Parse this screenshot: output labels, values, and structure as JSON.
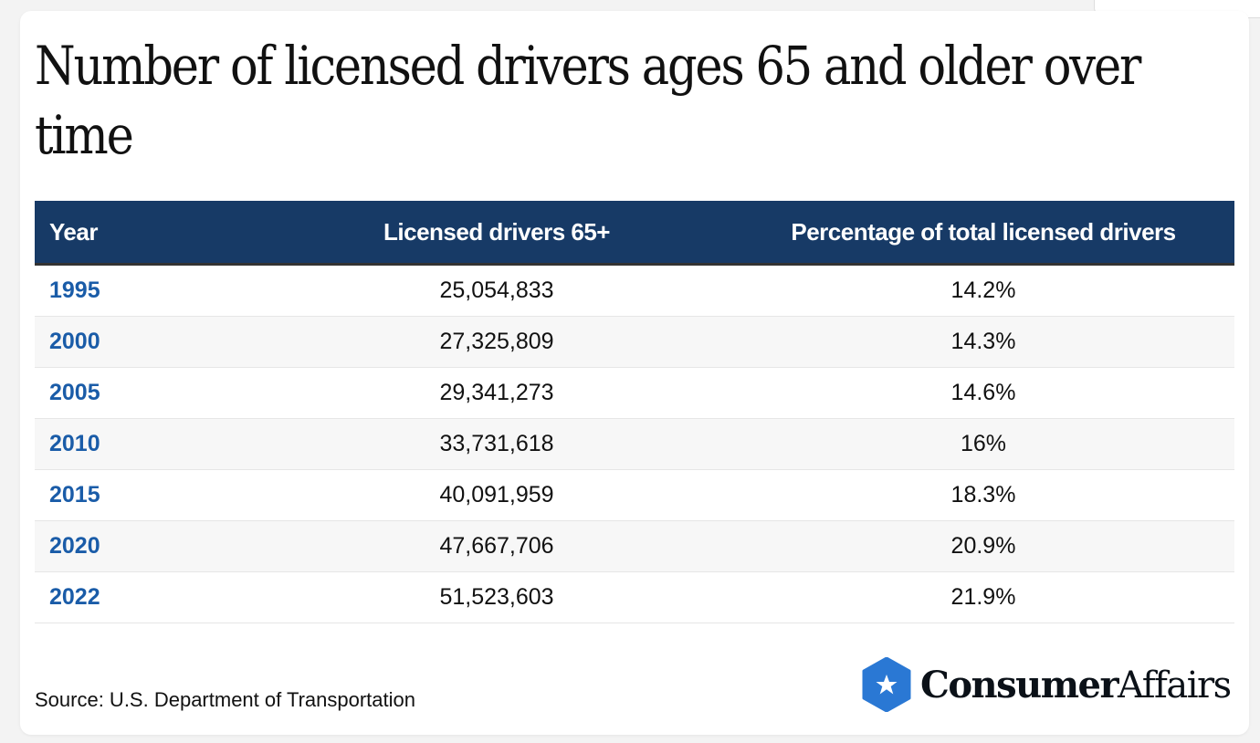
{
  "title": "Number of licensed drivers ages 65 and older over time",
  "table": {
    "headers": [
      "Year",
      "Licensed drivers 65+",
      "Percentage of total licensed drivers"
    ],
    "rows": [
      [
        "1995",
        "25,054,833",
        "14.2%"
      ],
      [
        "2000",
        "27,325,809",
        "14.3%"
      ],
      [
        "2005",
        "29,341,273",
        "14.6%"
      ],
      [
        "2010",
        "33,731,618",
        "16%"
      ],
      [
        "2015",
        "40,091,959",
        "18.3%"
      ],
      [
        "2020",
        "47,667,706",
        "20.9%"
      ],
      [
        "2022",
        "51,523,603",
        "21.9%"
      ]
    ]
  },
  "source": "Source: U.S. Department of Transportation",
  "logo": {
    "bold": "Consumer",
    "regular": "Affairs",
    "icon": "star-hexagon-icon",
    "color": "#2a78d4"
  },
  "colors": {
    "header_bg": "#173a66",
    "year_text": "#1a5ca8"
  }
}
